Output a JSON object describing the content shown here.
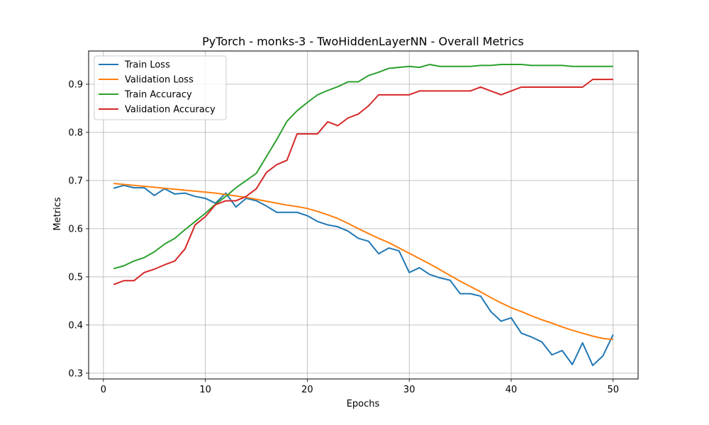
{
  "chart_data": {
    "type": "line",
    "title": "PyTorch - monks-3 - TwoHiddenLayerNN - Overall Metrics",
    "xlabel": "Epochs",
    "ylabel": "Metrics",
    "xlim": [
      -1.45,
      52.45
    ],
    "ylim": [
      0.288,
      0.969
    ],
    "xticks": [
      0,
      10,
      20,
      30,
      40,
      50
    ],
    "yticks": [
      0.3,
      0.4,
      0.5,
      0.6,
      0.7,
      0.8,
      0.9
    ],
    "xtick_labels": [
      "0",
      "10",
      "20",
      "30",
      "40",
      "50"
    ],
    "ytick_labels": [
      "0.3",
      "0.4",
      "0.5",
      "0.6",
      "0.7",
      "0.8",
      "0.9"
    ],
    "grid": true,
    "legend_position": "upper left",
    "x": [
      1,
      2,
      3,
      4,
      5,
      6,
      7,
      8,
      9,
      10,
      11,
      12,
      13,
      14,
      15,
      16,
      17,
      18,
      19,
      20,
      21,
      22,
      23,
      24,
      25,
      26,
      27,
      28,
      29,
      30,
      31,
      32,
      33,
      34,
      35,
      36,
      37,
      38,
      39,
      40,
      41,
      42,
      43,
      44,
      45,
      46,
      47,
      48,
      49,
      50
    ],
    "series": [
      {
        "name": "Train Loss",
        "color": "#1f77b4",
        "values": [
          0.684,
          0.69,
          0.685,
          0.685,
          0.669,
          0.683,
          0.672,
          0.674,
          0.667,
          0.663,
          0.653,
          0.674,
          0.645,
          0.663,
          0.658,
          0.647,
          0.634,
          0.634,
          0.634,
          0.627,
          0.615,
          0.608,
          0.604,
          0.595,
          0.58,
          0.574,
          0.548,
          0.56,
          0.554,
          0.509,
          0.519,
          0.505,
          0.498,
          0.493,
          0.465,
          0.465,
          0.46,
          0.428,
          0.408,
          0.415,
          0.383,
          0.375,
          0.365,
          0.338,
          0.347,
          0.318,
          0.363,
          0.316,
          0.336,
          0.38
        ]
      },
      {
        "name": "Validation Loss",
        "color": "#ff7f0e",
        "values": [
          0.694,
          0.692,
          0.69,
          0.688,
          0.686,
          0.684,
          0.682,
          0.68,
          0.678,
          0.676,
          0.674,
          0.671,
          0.668,
          0.665,
          0.661,
          0.657,
          0.653,
          0.649,
          0.646,
          0.642,
          0.636,
          0.629,
          0.621,
          0.611,
          0.6,
          0.59,
          0.58,
          0.571,
          0.56,
          0.549,
          0.538,
          0.527,
          0.515,
          0.503,
          0.491,
          0.48,
          0.469,
          0.457,
          0.446,
          0.436,
          0.428,
          0.419,
          0.411,
          0.404,
          0.396,
          0.389,
          0.383,
          0.377,
          0.372,
          0.37
        ]
      },
      {
        "name": "Train Accuracy",
        "color": "#2ca02c",
        "values": [
          0.517,
          0.523,
          0.533,
          0.54,
          0.552,
          0.568,
          0.58,
          0.598,
          0.615,
          0.632,
          0.651,
          0.667,
          0.685,
          0.7,
          0.715,
          0.75,
          0.785,
          0.823,
          0.845,
          0.862,
          0.878,
          0.887,
          0.895,
          0.905,
          0.905,
          0.918,
          0.925,
          0.933,
          0.935,
          0.937,
          0.935,
          0.941,
          0.937,
          0.937,
          0.937,
          0.937,
          0.939,
          0.939,
          0.941,
          0.941,
          0.941,
          0.939,
          0.939,
          0.939,
          0.939,
          0.937,
          0.937,
          0.937,
          0.937,
          0.937
        ]
      },
      {
        "name": "Validation Accuracy",
        "color": "#d62728",
        "values": [
          0.484,
          0.492,
          0.492,
          0.509,
          0.516,
          0.525,
          0.533,
          0.558,
          0.608,
          0.625,
          0.65,
          0.658,
          0.658,
          0.667,
          0.683,
          0.717,
          0.733,
          0.742,
          0.797,
          0.797,
          0.797,
          0.822,
          0.814,
          0.83,
          0.838,
          0.855,
          0.878,
          0.878,
          0.878,
          0.878,
          0.886,
          0.886,
          0.886,
          0.886,
          0.886,
          0.886,
          0.894,
          0.886,
          0.878,
          0.886,
          0.894,
          0.894,
          0.894,
          0.894,
          0.894,
          0.894,
          0.894,
          0.91,
          0.91,
          0.91
        ]
      }
    ]
  }
}
